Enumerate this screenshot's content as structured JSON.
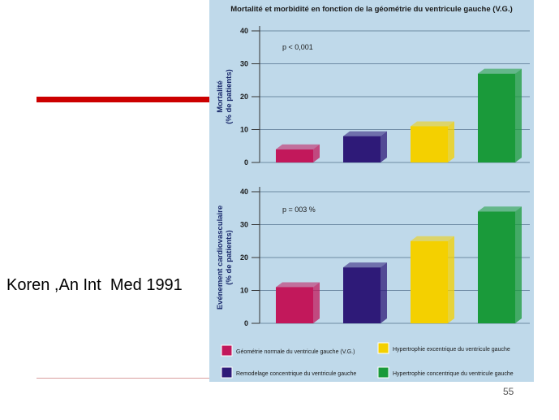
{
  "slide": {
    "citation": "Koren ,An Int  Med 1991",
    "page_number": "55"
  },
  "colors": {
    "accent_line": "#cc0000",
    "figure_bg": "#bfd9ea",
    "series": [
      "#c2185b",
      "#2e1a78",
      "#f4d000",
      "#1a9a3a"
    ]
  },
  "chart_data": [
    {
      "type": "bar",
      "title": "Mortalité et morbidité en fonction de la géométrie du ventricule gauche (V.G.)",
      "ylabel": "Mortalité (% de patients)",
      "annotation": "p < 0,001",
      "categories": [
        "Géométrie normale du ventricule gauche (V.G.)",
        "Remodelage concentrique du ventricule gauche",
        "Hypertrophie excentrique du ventricule gauche",
        "Hypertrophie concentrique du ventricule gauche"
      ],
      "values": [
        4,
        8,
        11,
        27
      ],
      "ylim": [
        0,
        40
      ],
      "yticks": [
        "0",
        "10",
        "20",
        "30",
        "40"
      ],
      "grid": true
    },
    {
      "type": "bar",
      "ylabel": "Evénement cardiovasculaire (% de patients)",
      "annotation": "p = 003 %",
      "categories": [
        "Géométrie normale du ventricule gauche (V.G.)",
        "Remodelage concentrique du ventricule gauche",
        "Hypertrophie excentrique du ventricule gauche",
        "Hypertrophie concentrique du ventricule gauche"
      ],
      "values": [
        11,
        17,
        25,
        34
      ],
      "ylim": [
        0,
        40
      ],
      "yticks": [
        "0",
        "10",
        "20",
        "30",
        "40"
      ],
      "grid": true
    }
  ],
  "legend": {
    "items": [
      {
        "label": "Géométrie normale du ventricule gauche (V.G.)",
        "color": "#c2185b"
      },
      {
        "label": "Hypertrophie excentrique du ventricule gauche",
        "color": "#f4d000"
      },
      {
        "label": "Remodelage concentrique du ventricule gauche",
        "color": "#2e1a78"
      },
      {
        "label": "Hypertrophie concentrique du ventricule gauche",
        "color": "#1a9a3a"
      }
    ]
  }
}
